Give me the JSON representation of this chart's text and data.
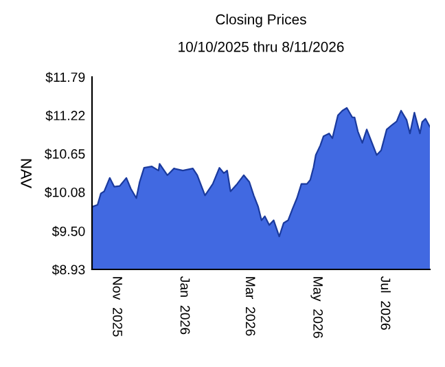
{
  "chart_data": {
    "type": "area",
    "title": "Closing Prices",
    "subtitle": "10/10/2025 thru 8/11/2026",
    "ylabel": "NAV",
    "x": [
      "2025-10-10",
      "2025-10-15",
      "2025-10-18",
      "2025-10-21",
      "2025-10-26",
      "2025-10-30",
      "2025-11-04",
      "2025-11-06",
      "2025-11-10",
      "2025-11-14",
      "2025-11-19",
      "2025-11-22",
      "2025-11-26",
      "2025-12-03",
      "2025-12-09",
      "2025-12-10",
      "2025-12-17",
      "2025-12-23",
      "2025-12-31",
      "2026-01-09",
      "2026-01-13",
      "2026-01-20",
      "2026-01-27",
      "2026-02-02",
      "2026-02-06",
      "2026-02-09",
      "2026-02-12",
      "2026-02-18",
      "2026-02-24",
      "2026-03-01",
      "2026-03-05",
      "2026-03-09",
      "2026-03-12",
      "2026-03-15",
      "2026-03-19",
      "2026-03-23",
      "2026-03-28",
      "2026-04-01",
      "2026-04-05",
      "2026-04-09",
      "2026-04-13",
      "2026-04-17",
      "2026-04-22",
      "2026-04-25",
      "2026-04-28",
      "2026-04-30",
      "2026-05-04",
      "2026-05-07",
      "2026-05-12",
      "2026-05-15",
      "2026-05-20",
      "2026-05-24",
      "2026-05-28",
      "2026-06-02",
      "2026-06-04",
      "2026-06-07",
      "2026-06-11",
      "2026-06-15",
      "2026-06-19",
      "2026-06-24",
      "2026-06-28",
      "2026-07-03",
      "2026-07-08",
      "2026-07-12",
      "2026-07-16",
      "2026-07-21",
      "2026-07-24",
      "2026-07-28",
      "2026-08-02",
      "2026-08-04",
      "2026-08-07",
      "2026-08-11"
    ],
    "series": [
      {
        "color": "#4169e1",
        "values": [
          9.86,
          9.89,
          10.06,
          10.09,
          10.29,
          10.16,
          10.17,
          10.21,
          10.29,
          10.13,
          9.99,
          10.23,
          10.44,
          10.46,
          10.4,
          10.5,
          10.33,
          10.43,
          10.4,
          10.43,
          10.33,
          10.03,
          10.2,
          10.44,
          10.36,
          10.4,
          10.09,
          10.2,
          10.33,
          10.23,
          10.03,
          9.86,
          9.66,
          9.72,
          9.59,
          9.66,
          9.42,
          9.62,
          9.66,
          9.83,
          9.99,
          10.2,
          10.2,
          10.26,
          10.45,
          10.63,
          10.77,
          10.91,
          10.95,
          10.88,
          11.22,
          11.29,
          11.33,
          11.19,
          11.19,
          10.98,
          10.81,
          11.01,
          10.84,
          10.63,
          10.7,
          11.01,
          11.08,
          11.13,
          11.29,
          11.15,
          10.95,
          11.26,
          10.95,
          11.12,
          11.17,
          11.05
        ]
      }
    ],
    "xlim": [
      "2025-10-10",
      "2026-08-11"
    ],
    "xticks": [
      {
        "value": "2025-11-01",
        "label": "Nov  2025"
      },
      {
        "value": "2026-01-01",
        "label": "Jan  2026"
      },
      {
        "value": "2026-03-01",
        "label": "Mar  2026"
      },
      {
        "value": "2026-05-01",
        "label": "May  2026"
      },
      {
        "value": "2026-07-01",
        "label": "Jul  2026"
      }
    ],
    "ylim": [
      8.93,
      11.79
    ],
    "yticks": [
      {
        "value": 8.93,
        "label": "$8.93"
      },
      {
        "value": 9.5,
        "label": "$9.50"
      },
      {
        "value": 10.08,
        "label": "$10.08"
      },
      {
        "value": 10.65,
        "label": "$10.65"
      },
      {
        "value": 11.22,
        "label": "$11.22"
      },
      {
        "value": 11.79,
        "label": "$11.79"
      }
    ],
    "grid": false,
    "legend": false
  }
}
